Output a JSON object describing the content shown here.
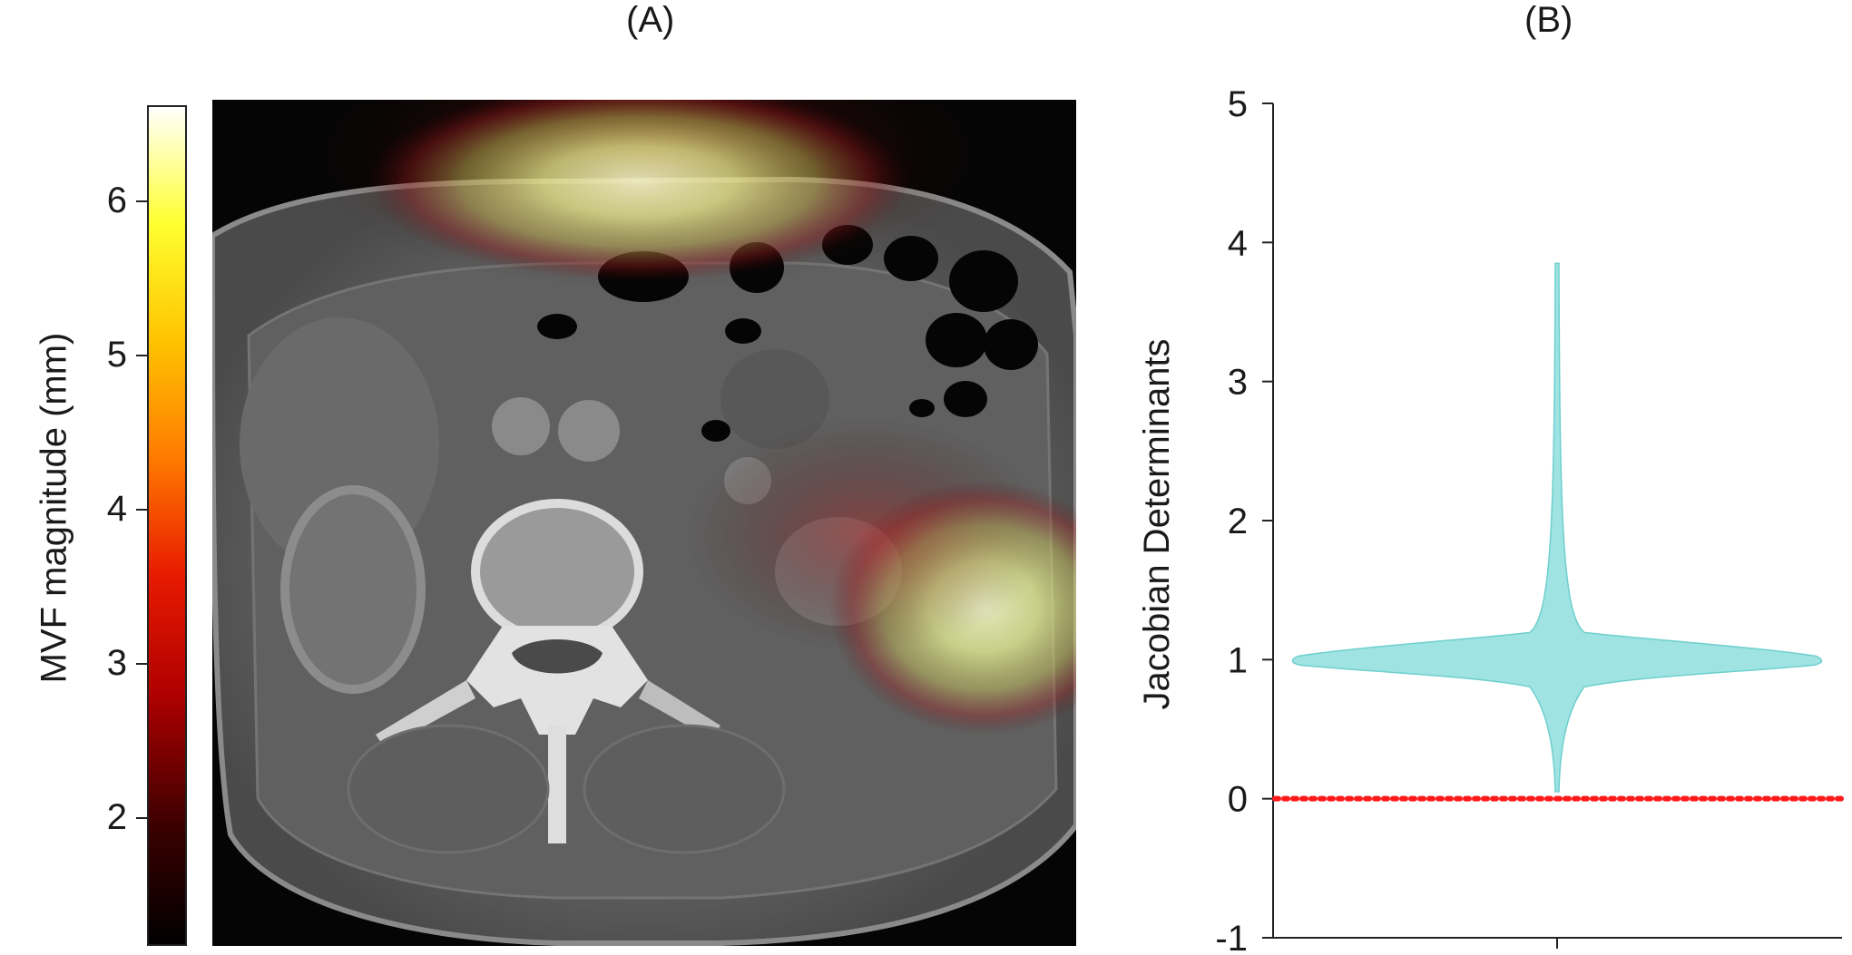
{
  "panels": {
    "a_label": "(A)",
    "b_label": "(B)"
  },
  "colorbar": {
    "title": "MVF magnitude (mm)",
    "ticks": [
      "6",
      "5",
      "4",
      "3",
      "2"
    ],
    "colormap": [
      "#000000",
      "#5a0000",
      "#c00000",
      "#ff3000",
      "#ff8800",
      "#ffd200",
      "#ffff40",
      "#ffffff"
    ]
  },
  "chart_data": {
    "type": "violin",
    "title": "",
    "xlabel": "",
    "ylabel": "Jacobian Determinants",
    "ylim": [
      -1,
      5
    ],
    "yticks": [
      "5",
      "4",
      "3",
      "2",
      "1",
      "0",
      "-1"
    ],
    "grid": false,
    "series": [
      {
        "min": 0.05,
        "max": 3.85,
        "median": 1.0,
        "mode": 1.0,
        "color": "#9fe3e3"
      }
    ],
    "reference_line": {
      "y": 0,
      "style": "dotted",
      "color": "#ff1a1a"
    }
  },
  "colors": {
    "violin_fill": "#9fe3e3",
    "violin_stroke": "#6fcfcf",
    "zero_line": "#ff1a1a"
  }
}
